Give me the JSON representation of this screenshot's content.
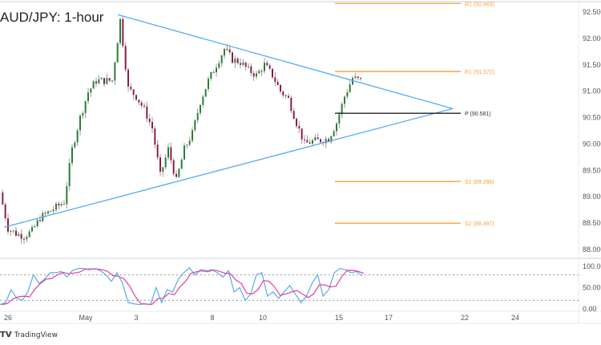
{
  "title": "AUD/JPY: 1-hour",
  "branding": "TradingView",
  "colors": {
    "up": "#2e7d32",
    "down": "#8e1b4d",
    "trendline": "#5aa9f0",
    "pivot": "#222222",
    "levels": "#f7a035",
    "rsi_k": "#5aa9f0",
    "rsi_d": "#e0409a"
  },
  "chart_data": {
    "type": "candlestick",
    "title": "AUD/JPY: 1-hour",
    "price_axis": {
      "ticks": [
        "92.500",
        "92.000",
        "91.500",
        "91.000",
        "90.500",
        "90.000",
        "89.500",
        "89.000",
        "88.500",
        "88.000"
      ],
      "range": [
        87.85,
        92.7
      ]
    },
    "date_axis": {
      "ticks": [
        "26",
        "May",
        "3",
        "8",
        "10",
        "15",
        "17",
        "22",
        "24"
      ]
    },
    "closes": [
      89.08,
      88.4,
      88.3,
      88.25,
      88.35,
      88.6,
      88.7,
      88.8,
      88.9,
      89.9,
      90.5,
      90.98,
      91.2,
      91.2,
      91.2,
      92.35,
      91.05,
      90.9,
      90.65,
      90.3,
      89.4,
      89.9,
      89.3,
      89.9,
      90.2,
      90.8,
      91.2,
      91.5,
      91.8,
      91.6,
      91.55,
      91.4,
      91.3,
      91.5,
      91.3,
      91.0,
      90.85,
      90.4,
      90.0,
      90.05,
      90.07,
      90.1,
      90.4,
      90.9,
      91.25,
      91.2
    ],
    "trendlines": [
      {
        "name": "upper",
        "from": 92.45,
        "to": 90.67
      },
      {
        "name": "lower",
        "from": 88.42,
        "to": 90.67
      }
    ],
    "pivot_levels": [
      {
        "label": "R2 (92.663)",
        "value": 92.663
      },
      {
        "label": "R1 (91.372)",
        "value": 91.372
      },
      {
        "label": "P (90.581)",
        "value": 90.581
      },
      {
        "label": "S1 (89.288)",
        "value": 89.288
      },
      {
        "label": "S2 (88.497)",
        "value": 88.497
      }
    ],
    "oscillator": {
      "ticks": [
        "100.00",
        "50.00",
        "0.00"
      ],
      "range": [
        0,
        100
      ],
      "bands": [
        80,
        20
      ],
      "k": [
        10,
        15,
        45,
        25,
        20,
        40,
        80,
        60,
        70,
        85,
        85,
        88,
        75,
        90,
        95,
        95,
        92,
        95,
        90,
        80,
        65,
        85,
        60,
        15,
        12,
        10,
        12,
        10,
        50,
        15,
        45,
        40,
        70,
        85,
        97,
        80,
        92,
        90,
        92,
        85,
        75,
        90,
        40,
        50,
        20,
        35,
        80,
        85,
        30,
        40,
        25,
        40,
        55,
        35,
        15,
        30,
        60,
        80,
        30,
        45,
        85,
        95,
        92,
        85,
        88,
        78
      ]
    }
  }
}
